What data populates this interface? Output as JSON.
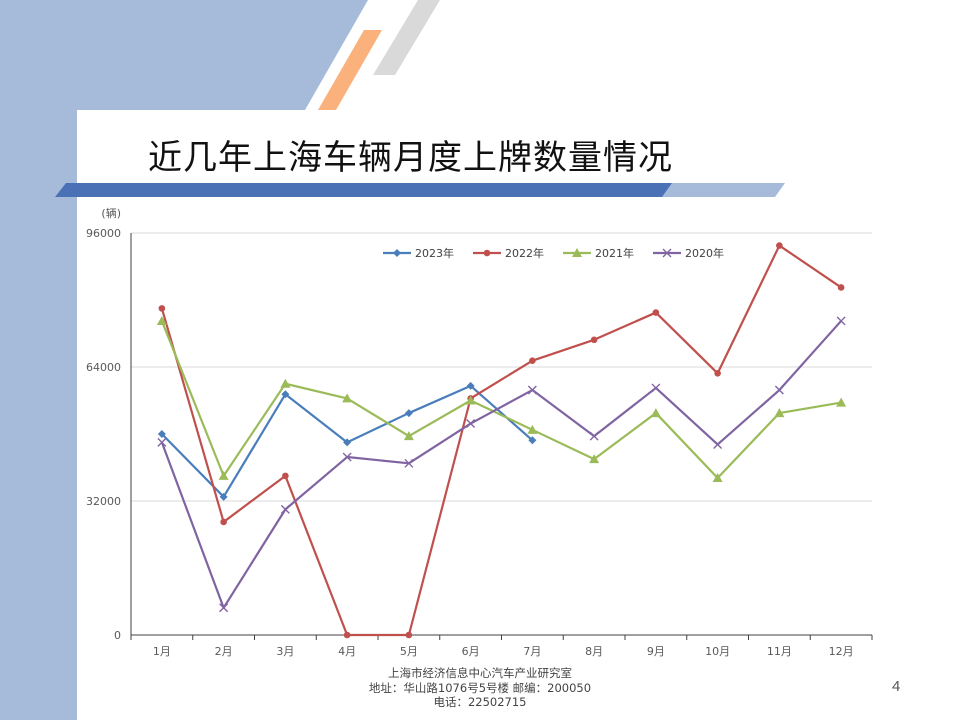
{
  "slide": {
    "title": "近几年上海车辆月度上牌数量情况",
    "page_number": "4",
    "footer": {
      "line1": "上海市经济信息中心汽车产业研究室",
      "line2": "地址：华山路1076号5号楼   邮编：200050",
      "line3": "电话：22502715"
    }
  },
  "colors": {
    "left_band": "#a6bbd9",
    "orange_stripe": "#fbb17c",
    "gray_stripe": "#d9d9d9",
    "title_bar": "#4a70b5"
  },
  "chart_data": {
    "type": "line",
    "unit_label": "(辆)",
    "categories": [
      "1月",
      "2月",
      "3月",
      "4月",
      "5月",
      "6月",
      "7月",
      "8月",
      "9月",
      "10月",
      "11月",
      "12月"
    ],
    "ylim": [
      0,
      96000
    ],
    "yticks": [
      "0",
      "32000",
      "64000",
      "96000"
    ],
    "grid": true,
    "legend_position": "top",
    "series": [
      {
        "name": "2023年",
        "color": "#4a7ebb",
        "marker": "diamond",
        "values": [
          48000,
          33000,
          57500,
          46000,
          53000,
          59500,
          46500,
          null,
          null,
          null,
          null,
          null
        ]
      },
      {
        "name": "2022年",
        "color": "#c0504d",
        "marker": "circle",
        "values": [
          78000,
          27000,
          38000,
          0,
          0,
          56500,
          65500,
          70500,
          77000,
          62500,
          93000,
          83000
        ]
      },
      {
        "name": "2021年",
        "color": "#9bbb59",
        "marker": "triangle",
        "values": [
          75000,
          38000,
          60000,
          56500,
          47500,
          56000,
          49000,
          42000,
          53000,
          37500,
          53000,
          55500
        ]
      },
      {
        "name": "2020年",
        "color": "#8064a2",
        "marker": "x",
        "values": [
          46000,
          6500,
          30000,
          42500,
          41000,
          50500,
          58500,
          47500,
          59000,
          45500,
          58500,
          75000
        ]
      }
    ]
  }
}
